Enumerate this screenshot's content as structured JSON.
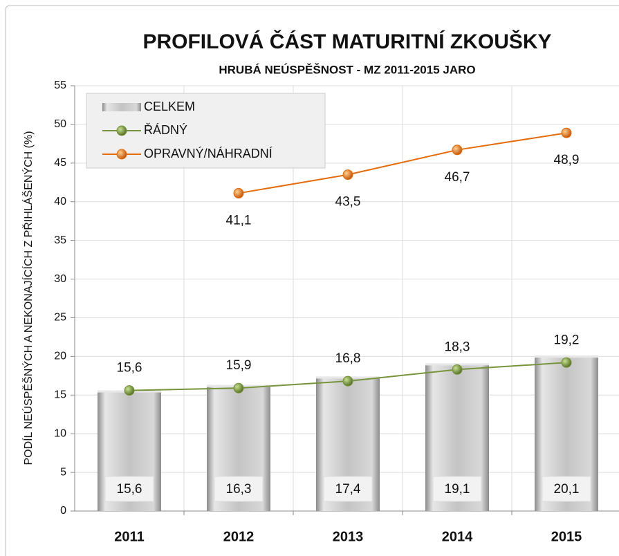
{
  "chart_data": {
    "type": "bar",
    "title": "PROFILOVÁ ČÁST MATURITNÍ ZKOUŠKY",
    "subtitle": "HRUBÁ NEÚSPĚŠNOST - MZ 2011-2015 JARO",
    "y_label": "PODÍL NEÚSPĚŠNÝCH A NEKONAJÍCÍCH Z PŘIHLÁŠENÝCH (%)",
    "categories": [
      "2011",
      "2012",
      "2013",
      "2014",
      "2015"
    ],
    "series": [
      {
        "name": "CELKEM",
        "type": "bar",
        "color": "#c0c0c0",
        "values": [
          15.6,
          16.3,
          17.4,
          19.1,
          20.1
        ],
        "value_labels": [
          "15,6",
          "16,3",
          "17,4",
          "19,1",
          "20,1"
        ]
      },
      {
        "name": "ŘÁDNÝ",
        "type": "line",
        "color": "#77933c",
        "values": [
          15.6,
          15.9,
          16.8,
          18.3,
          19.2
        ],
        "value_labels": [
          "15,6",
          "15,9",
          "16,8",
          "18,3",
          "19,2"
        ]
      },
      {
        "name": "OPRAVNÝ/NÁHRADNÍ",
        "type": "line",
        "color": "#e46c0a",
        "values": [
          null,
          41.1,
          43.5,
          46.7,
          48.9
        ],
        "value_labels": [
          null,
          "41,1",
          "43,5",
          "46,7",
          "48,9"
        ]
      }
    ],
    "ylim": [
      0,
      55
    ],
    "yticks": [
      0,
      5,
      10,
      15,
      20,
      25,
      30,
      35,
      40,
      45,
      50,
      55
    ],
    "grid": true,
    "legend": "top-left"
  }
}
